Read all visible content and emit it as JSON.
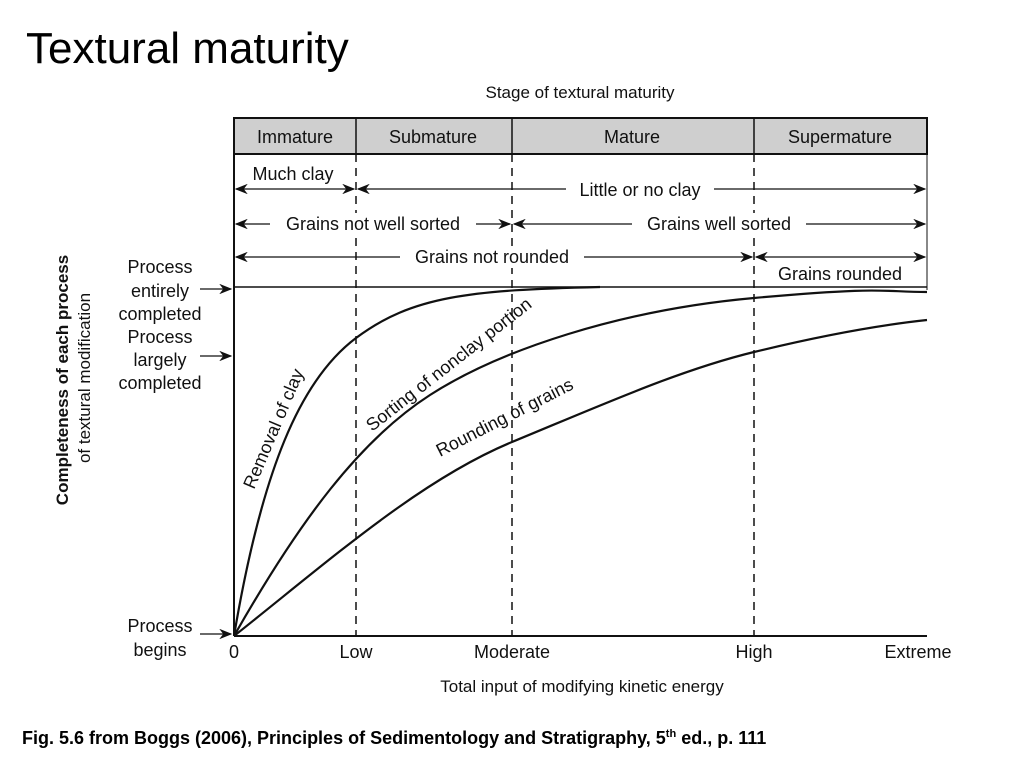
{
  "slide": {
    "title": "Textural maturity",
    "caption_pre": "Fig. 5.6 from Boggs (2006), Principles of Sedimentology and Stratigraphy, 5",
    "caption_sup": "th",
    "caption_post": " ed., p. 111"
  },
  "figure": {
    "top_title": "Stage of textural maturity",
    "stages": [
      "Immature",
      "Submature",
      "Mature",
      "Supermature"
    ],
    "rows": {
      "much_clay": "Much clay",
      "little_clay": "Little or no clay",
      "not_sorted": "Grains not well sorted",
      "well_sorted": "Grains well sorted",
      "not_rounded": "Grains not rounded",
      "rounded": "Grains rounded"
    },
    "y_axis": {
      "label_line1": "Completeness of each process",
      "label_line2": "of textural modification",
      "levels": {
        "entirely": [
          "Process",
          "entirely",
          "completed"
        ],
        "largely": [
          "Process",
          "largely",
          "completed"
        ],
        "begins": [
          "Process",
          "begins"
        ]
      }
    },
    "x_axis": {
      "label": "Total input of modifying kinetic energy",
      "ticks": [
        "0",
        "Low",
        "Moderate",
        "High",
        "Extreme"
      ]
    },
    "curves": [
      "Removal of clay",
      "Sorting of nonclay portion",
      "Rounding of grains"
    ],
    "colors": {
      "header_band": "#cfcfcf",
      "ink": "#111111"
    }
  }
}
